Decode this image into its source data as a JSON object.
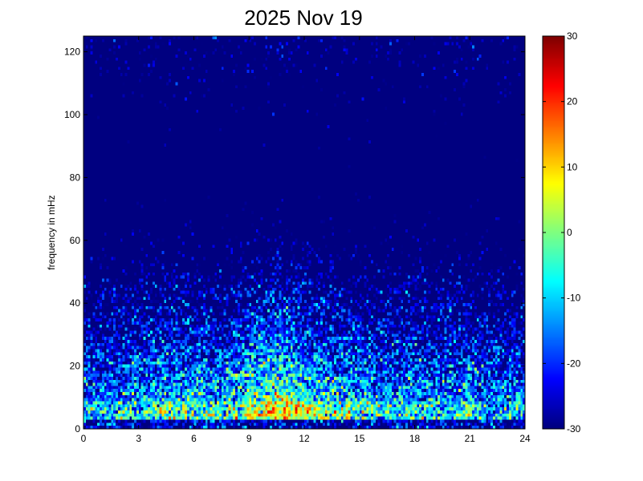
{
  "chart_data": {
    "type": "heatmap",
    "title": "2025 Nov 19",
    "xlabel": "",
    "ylabel": "frequency in mHz",
    "xlim": [
      0,
      24
    ],
    "ylim": [
      0,
      125
    ],
    "x_ticks": [
      "0",
      "3",
      "6",
      "9",
      "12",
      "15",
      "18",
      "21",
      "24"
    ],
    "y_ticks": [
      "0",
      "20",
      "40",
      "60",
      "80",
      "100",
      "120"
    ],
    "colorbar": {
      "min": -30,
      "max": 30,
      "colormap": "jet",
      "ticks": [
        "-30",
        "-20",
        "-10",
        "0",
        "10",
        "20",
        "30"
      ]
    },
    "grid": false
  }
}
